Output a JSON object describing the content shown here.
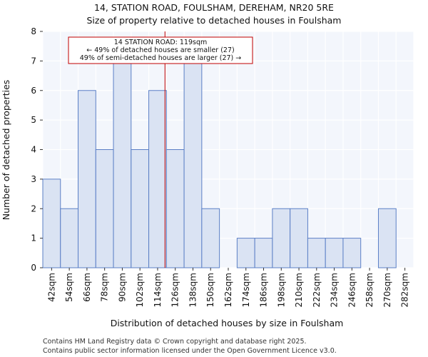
{
  "chart_data": {
    "type": "bar",
    "title": "14, STATION ROAD, FOULSHAM, DEREHAM, NR20 5RE",
    "subtitle": "Size of property relative to detached houses in Foulsham",
    "xlabel": "Distribution of detached houses by size in Foulsham",
    "ylabel": "Number of detached properties",
    "bin_edges": [
      36,
      48,
      60,
      72,
      84,
      96,
      108,
      120,
      132,
      144,
      156,
      168,
      180,
      192,
      204,
      216,
      228,
      240,
      252,
      264,
      276,
      288
    ],
    "categories": [
      "42sqm",
      "54sqm",
      "66sqm",
      "78sqm",
      "90sqm",
      "102sqm",
      "114sqm",
      "126sqm",
      "138sqm",
      "150sqm",
      "162sqm",
      "174sqm",
      "186sqm",
      "198sqm",
      "210sqm",
      "222sqm",
      "234sqm",
      "246sqm",
      "258sqm",
      "270sqm",
      "282sqm"
    ],
    "values": [
      3,
      2,
      6,
      4,
      7,
      4,
      6,
      4,
      7,
      2,
      0,
      1,
      1,
      2,
      2,
      1,
      1,
      1,
      0,
      2,
      0
    ],
    "xlim": [
      36,
      288
    ],
    "ylim": [
      0,
      8
    ],
    "yticks": [
      0,
      1,
      2,
      3,
      4,
      5,
      6,
      7,
      8
    ],
    "grid": true,
    "bar_fill": "#dae3f3",
    "bar_edge": "#5b7fc6",
    "marker": {
      "x": 119,
      "color": "#c00000",
      "lines": [
        "14 STATION ROAD: 119sqm",
        "← 49% of detached houses are smaller (27)",
        "49% of semi-detached houses are larger (27) →"
      ]
    }
  },
  "footer": {
    "line1": "Contains HM Land Registry data © Crown copyright and database right 2025.",
    "line2": "Contains public sector information licensed under the Open Government Licence v3.0."
  }
}
